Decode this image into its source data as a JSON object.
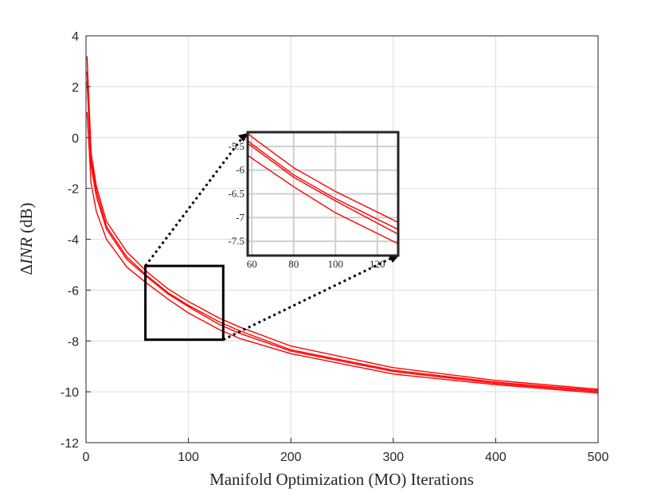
{
  "chart_data": [
    {
      "type": "line",
      "xlabel": "Manifold Optimization (MO) Iterations",
      "ylabel_prefix": "Δ",
      "ylabel_italic": "INR",
      "ylabel_suffix": " (dB)",
      "xlim": [
        0,
        500
      ],
      "ylim": [
        -12,
        4
      ],
      "xticks": [
        0,
        100,
        200,
        300,
        400,
        500
      ],
      "yticks": [
        4,
        2,
        0,
        -2,
        -4,
        -6,
        -8,
        -10,
        -12
      ],
      "grid": true,
      "line_color": "#ff0000",
      "series": [
        {
          "x": [
            1,
            5,
            10,
            20,
            40,
            60,
            80,
            100,
            130,
            150,
            200,
            300,
            400,
            500
          ],
          "values": [
            3.2,
            -0.6,
            -1.9,
            -3.3,
            -4.5,
            -5.3,
            -5.95,
            -6.45,
            -7.1,
            -7.45,
            -8.2,
            -9.05,
            -9.55,
            -9.9
          ]
        },
        {
          "x": [
            1,
            5,
            10,
            20,
            40,
            60,
            80,
            100,
            130,
            150,
            200,
            300,
            400,
            500
          ],
          "values": [
            2.6,
            -0.9,
            -2.1,
            -3.5,
            -4.7,
            -5.45,
            -6.1,
            -6.6,
            -7.25,
            -7.6,
            -8.35,
            -9.15,
            -9.62,
            -9.95
          ]
        },
        {
          "x": [
            1,
            5,
            10,
            20,
            40,
            60,
            80,
            100,
            130,
            150,
            200,
            300,
            400,
            500
          ],
          "values": [
            2.2,
            -1.1,
            -2.3,
            -3.6,
            -4.8,
            -5.5,
            -6.15,
            -6.65,
            -7.35,
            -7.7,
            -8.4,
            -9.2,
            -9.67,
            -10.0
          ]
        },
        {
          "x": [
            1,
            5,
            10,
            20,
            40,
            60,
            80,
            100,
            130,
            150,
            200,
            300,
            400,
            500
          ],
          "values": [
            1.0,
            -1.8,
            -2.9,
            -4.0,
            -5.1,
            -5.75,
            -6.35,
            -6.9,
            -7.55,
            -7.9,
            -8.5,
            -9.3,
            -9.72,
            -10.05
          ]
        }
      ]
    },
    {
      "type": "line",
      "inset": true,
      "xlim": [
        58,
        130
      ],
      "ylim": [
        -7.8,
        -5.2
      ],
      "xticks": [
        60,
        80,
        100,
        120
      ],
      "yticks": [
        -5.5,
        -6,
        -6.5,
        -7,
        -7.5
      ],
      "grid": true
    }
  ]
}
